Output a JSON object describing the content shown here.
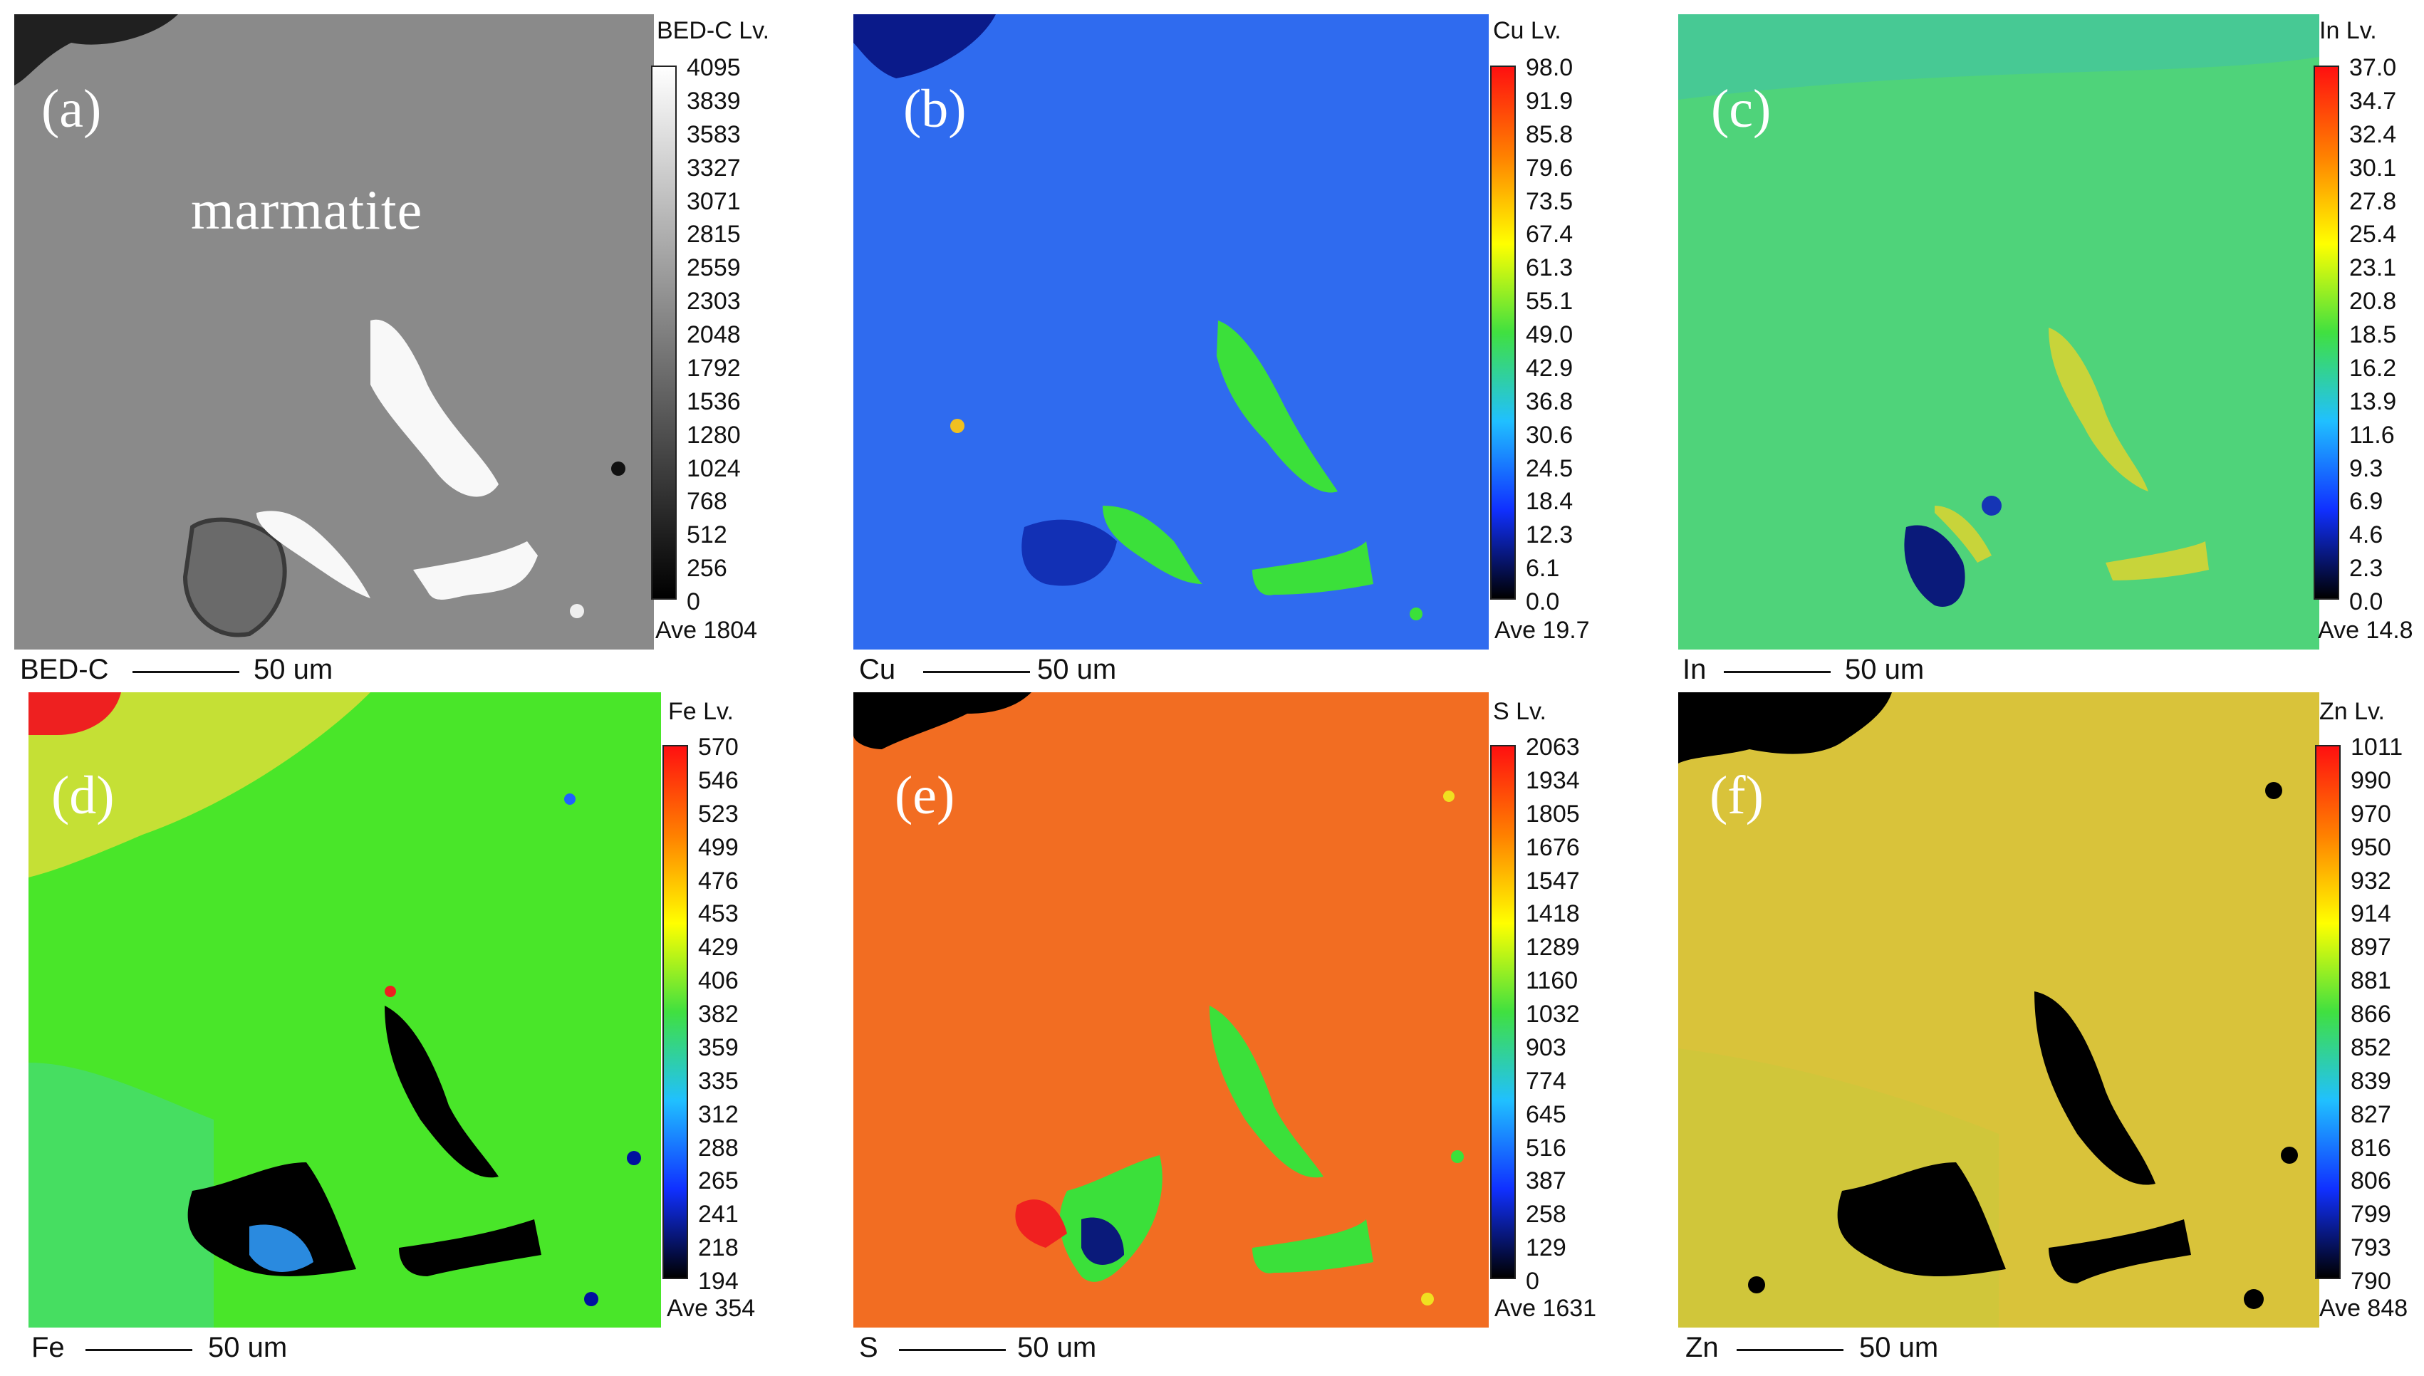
{
  "panels": [
    {
      "id": "a",
      "letter": "(a)",
      "mineral": "marmatite",
      "level_title": "BED-C  Lv.",
      "ticks": [
        "4095",
        "3839",
        "3583",
        "3327",
        "3071",
        "2815",
        "2559",
        "2303",
        "2048",
        "1792",
        "1536",
        "1280",
        "1024",
        "768",
        "512",
        "256",
        "0"
      ],
      "average": "Ave 1804",
      "channel": "BED-C",
      "scale_text": "50 um",
      "colormap": "grayscale"
    },
    {
      "id": "b",
      "letter": "(b)",
      "level_title": "Cu  Lv.",
      "ticks": [
        "98.0",
        "91.9",
        "85.8",
        "79.6",
        "73.5",
        "67.4",
        "61.3",
        "55.1",
        "49.0",
        "42.9",
        "36.8",
        "30.6",
        "24.5",
        "18.4",
        "12.3",
        "6.1",
        "0.0"
      ],
      "average": "Ave 19.7",
      "channel": "Cu",
      "scale_text": "50 um",
      "colormap": "rainbow"
    },
    {
      "id": "c",
      "letter": "(c)",
      "level_title": "In  Lv.",
      "ticks": [
        "37.0",
        "34.7",
        "32.4",
        "30.1",
        "27.8",
        "25.4",
        "23.1",
        "20.8",
        "18.5",
        "16.2",
        "13.9",
        "11.6",
        "9.3",
        "6.9",
        "4.6",
        "2.3",
        "0.0"
      ],
      "average": "Ave 14.8",
      "channel": "In",
      "scale_text": "50 um",
      "colormap": "rainbow"
    },
    {
      "id": "d",
      "letter": "(d)",
      "level_title": "Fe  Lv.",
      "ticks": [
        "570",
        "546",
        "523",
        "499",
        "476",
        "453",
        "429",
        "406",
        "382",
        "359",
        "335",
        "312",
        "288",
        "265",
        "241",
        "218",
        "194"
      ],
      "average": "Ave 354",
      "channel": "Fe",
      "scale_text": "50 um",
      "colormap": "rainbow"
    },
    {
      "id": "e",
      "letter": "(e)",
      "level_title": "S  Lv.",
      "ticks": [
        "2063",
        "1934",
        "1805",
        "1676",
        "1547",
        "1418",
        "1289",
        "1160",
        "1032",
        "903",
        "774",
        "645",
        "516",
        "387",
        "258",
        "129",
        "0"
      ],
      "average": "Ave 1631",
      "channel": "S",
      "scale_text": "50 um",
      "colormap": "rainbow"
    },
    {
      "id": "f",
      "letter": "(f)",
      "level_title": "Zn  Lv.",
      "ticks": [
        "1011",
        "990",
        "970",
        "950",
        "932",
        "914",
        "897",
        "881",
        "866",
        "852",
        "839",
        "827",
        "816",
        "806",
        "799",
        "793",
        "790"
      ],
      "average": "Ave 848",
      "channel": "Zn",
      "scale_text": "50 um",
      "colormap": "rainbow"
    }
  ],
  "colors": {
    "bed_background": "#8a8a8a",
    "cu_background": "#2f6bef",
    "in_background": "#4fd37a",
    "fe_background": "#49e629",
    "s_background": "#f26d22",
    "zn_background": "#d9c33a",
    "grain": "#000000"
  }
}
